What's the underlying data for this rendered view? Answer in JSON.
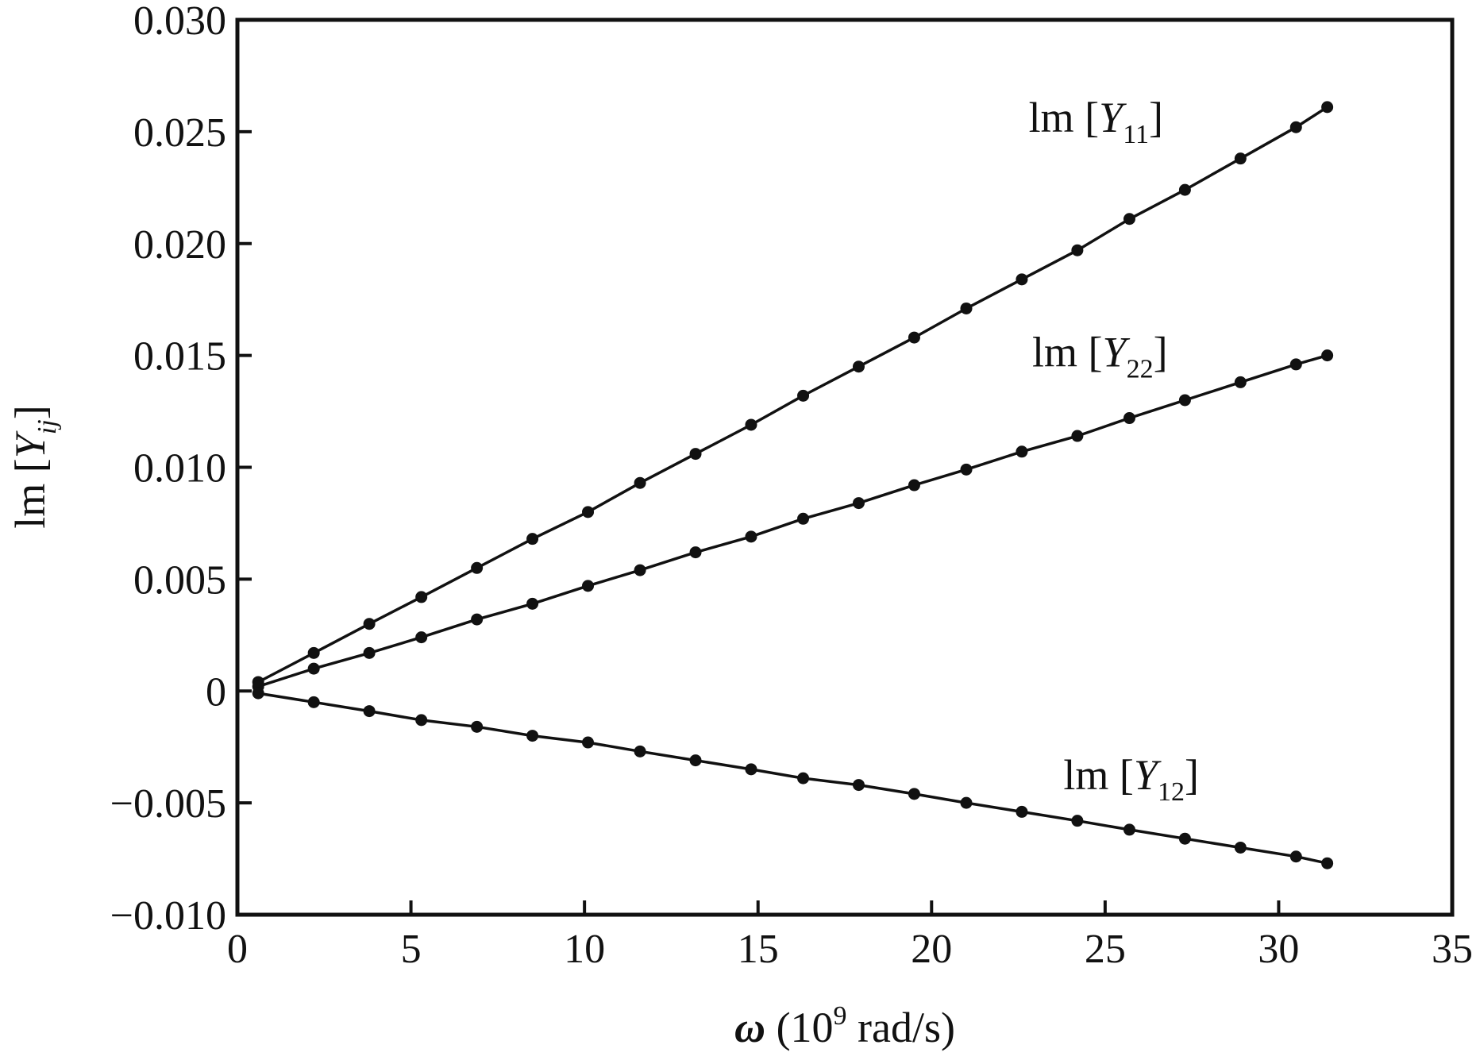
{
  "chart_data": {
    "type": "line",
    "title": "",
    "xlim": [
      0,
      35
    ],
    "ylim": [
      -0.01,
      0.03
    ],
    "grid": false,
    "x_ticks": [
      0,
      5,
      10,
      15,
      20,
      25,
      30,
      35
    ],
    "x_tick_labels": [
      "0",
      "5",
      "10",
      "15",
      "20",
      "25",
      "30",
      "35"
    ],
    "y_ticks": [
      -0.01,
      -0.005,
      0,
      0.005,
      0.01,
      0.015,
      0.02,
      0.025,
      0.03
    ],
    "y_tick_labels": [
      "−0.010",
      "−0.005",
      "0",
      "0.005",
      "0.010",
      "0.015",
      "0.020",
      "0.025",
      "0.030"
    ],
    "xlabel": {
      "symbol": "ω",
      "prefix": " (10",
      "sup": "9",
      "suffix": " rad/s)"
    },
    "ylabel": {
      "main": "lm [",
      "italic": "Y",
      "sub": "ij",
      "close": "]"
    },
    "x": [
      0.6,
      2.2,
      3.8,
      5.3,
      6.9,
      8.5,
      10.1,
      11.6,
      13.2,
      14.8,
      16.3,
      17.9,
      19.5,
      21.0,
      22.6,
      24.2,
      25.7,
      27.3,
      28.9,
      30.5,
      31.4
    ],
    "series": [
      {
        "label": {
          "main": "lm [",
          "italic": "Y",
          "sub": "11",
          "close": "]"
        },
        "label_anchor": [
          22.8,
          0.025
        ],
        "values": [
          0.0004,
          0.0017,
          0.003,
          0.0042,
          0.0055,
          0.0068,
          0.008,
          0.0093,
          0.0106,
          0.0119,
          0.0132,
          0.0145,
          0.0158,
          0.0171,
          0.0184,
          0.0197,
          0.0211,
          0.0224,
          0.0238,
          0.0252,
          0.0261
        ]
      },
      {
        "label": {
          "main": "lm [",
          "italic": "Y",
          "sub": "22",
          "close": "]"
        },
        "label_anchor": [
          22.9,
          0.0145
        ],
        "values": [
          0.0002,
          0.001,
          0.0017,
          0.0024,
          0.0032,
          0.0039,
          0.0047,
          0.0054,
          0.0062,
          0.0069,
          0.0077,
          0.0084,
          0.0092,
          0.0099,
          0.0107,
          0.0114,
          0.0122,
          0.013,
          0.0138,
          0.0146,
          0.015
        ]
      },
      {
        "label": {
          "main": "lm [",
          "italic": "Y",
          "sub": "12",
          "close": "]"
        },
        "label_anchor": [
          23.8,
          -0.0044
        ],
        "values": [
          -0.0001,
          -0.0005,
          -0.0009,
          -0.0013,
          -0.0016,
          -0.002,
          -0.0023,
          -0.0027,
          -0.0031,
          -0.0035,
          -0.0039,
          -0.0042,
          -0.0046,
          -0.005,
          -0.0054,
          -0.0058,
          -0.0062,
          -0.0066,
          -0.007,
          -0.0074,
          -0.0077
        ]
      }
    ]
  }
}
